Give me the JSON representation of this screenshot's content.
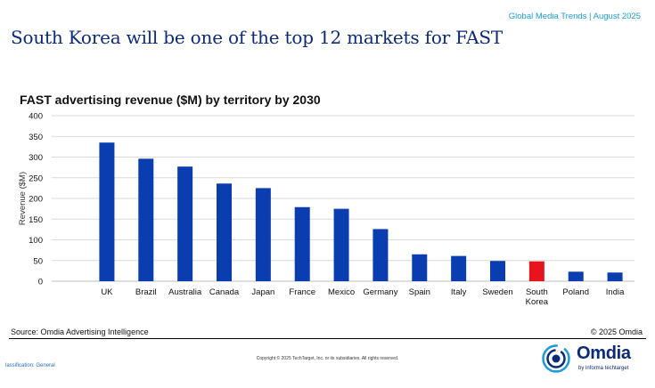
{
  "header": {
    "tag": "Global Media Trends | August 2025",
    "headline": "South Korea will be one of the top 12 markets for FAST"
  },
  "chart_data": {
    "type": "bar",
    "title": "FAST advertising revenue ($M) by territory by 2030",
    "xlabel": "",
    "ylabel": "Revenue ($M)",
    "ylim": [
      0,
      400
    ],
    "yticks": [
      0,
      50,
      100,
      150,
      200,
      250,
      300,
      350,
      400
    ],
    "grid": true,
    "categories": [
      "UK",
      "Brazil",
      "Australia",
      "Canada",
      "Japan",
      "France",
      "Mexico",
      "Germany",
      "Spain",
      "Italy",
      "Sweden",
      "South Korea",
      "Poland",
      "India"
    ],
    "category_lines": [
      [
        "UK"
      ],
      [
        "Brazil"
      ],
      [
        "Australia"
      ],
      [
        "Canada"
      ],
      [
        "Japan"
      ],
      [
        "France"
      ],
      [
        "Mexico"
      ],
      [
        "Germany"
      ],
      [
        "Spain"
      ],
      [
        "Italy"
      ],
      [
        "Sweden"
      ],
      [
        "South",
        "Korea"
      ],
      [
        "Poland"
      ],
      [
        "India"
      ]
    ],
    "values": [
      335,
      296,
      277,
      236,
      225,
      179,
      175,
      126,
      65,
      61,
      49,
      48,
      23,
      21
    ],
    "colors": {
      "default": "#0a3db0",
      "highlight": "#e8141c",
      "highlight_category": "South Korea"
    }
  },
  "footer": {
    "source": "Source: Omdia Advertising Intelligence",
    "copyright_right": "© 2025 Omdia",
    "copyright_center": "Copyright © 2025 TechTarget, Inc. or its subsidiaries. All rights reserved.",
    "classification": "lassification: General"
  },
  "logo": {
    "name": "Omdia",
    "sub": "by informa techtarget"
  }
}
